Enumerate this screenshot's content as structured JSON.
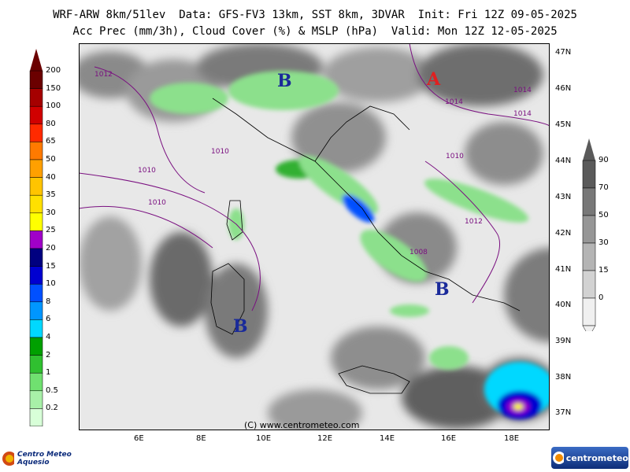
{
  "header": {
    "line1": "WRF-ARW 8km/51lev  Data: GFS-FV3 13km, SST 8km, 3DVAR  Init: Fri 12Z 09-05-2025",
    "line2": "Acc Prec (mm/3h), Cloud Cover (%) & MSLP (hPa)  Valid: Mon 12Z 12-05-2025"
  },
  "lat_labels": [
    "47N",
    "46N",
    "45N",
    "44N",
    "43N",
    "42N",
    "41N",
    "40N",
    "39N",
    "38N",
    "37N"
  ],
  "lon_labels": [
    "6E",
    "8E",
    "10E",
    "12E",
    "14E",
    "16E",
    "18E"
  ],
  "precip_legend": {
    "labels": [
      "200",
      "150",
      "100",
      "80",
      "65",
      "50",
      "40",
      "35",
      "30",
      "25",
      "20",
      "15",
      "10",
      "8",
      "6",
      "4",
      "2",
      "1",
      "0.5",
      "0.2"
    ],
    "colors": [
      "#6b0000",
      "#a50000",
      "#d00000",
      "#ff2a00",
      "#ff7a00",
      "#ffa000",
      "#ffc400",
      "#ffe000",
      "#ffff00",
      "#a000c8",
      "#000080",
      "#0000d0",
      "#0050ff",
      "#0096ff",
      "#00d8ff",
      "#00a000",
      "#30c030",
      "#70e070",
      "#a8f0a8",
      "#d8ffd8"
    ]
  },
  "cloud_legend": {
    "labels": [
      "90",
      "70",
      "50",
      "30",
      "15",
      "0"
    ],
    "colors": [
      "#5a5a5a",
      "#787878",
      "#969696",
      "#b4b4b4",
      "#d2d2d2",
      "#f0f0f0"
    ]
  },
  "pressure_centers": [
    {
      "label": "B",
      "type": "low"
    },
    {
      "label": "A",
      "type": "high"
    },
    {
      "label": "B",
      "type": "low"
    },
    {
      "label": "B",
      "type": "low"
    }
  ],
  "isobar_labels": [
    "1012",
    "1010",
    "1010",
    "1012",
    "1014",
    "1014",
    "1014",
    "1010",
    "1010",
    "1008"
  ],
  "credit": "(C) www.centrometeo.com",
  "logos": {
    "left": "Centro Meteo Aquesio",
    "right": "centrometeo"
  },
  "colors": {
    "land_bg": "#c8c8c8",
    "sea_bg": "#e6e6e6",
    "isobar": "#7a1080",
    "high_center": "#e02020",
    "low_center": "#1a2a9a"
  }
}
